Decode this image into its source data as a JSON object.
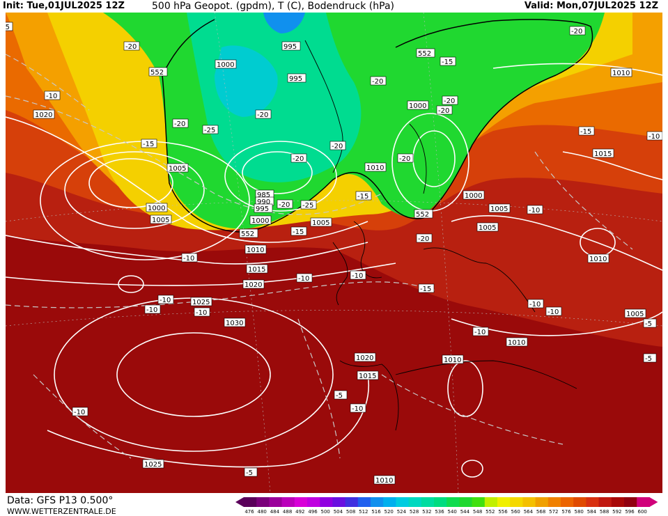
{
  "header": {
    "init": "Init: Tue,01JUL2025 12Z",
    "title": "500 hPa Geopot. (gpdm), T (C), Bodendruck (hPa)",
    "valid": "Valid: Mon,07JUL2025 12Z"
  },
  "footer": {
    "data_source": "Data: GFS P13 0.500°",
    "website": "WWW.WETTERZENTRALE.DE"
  },
  "color_scale": {
    "values": [
      "476",
      "480",
      "484",
      "488",
      "492",
      "496",
      "500",
      "504",
      "508",
      "512",
      "516",
      "520",
      "524",
      "528",
      "532",
      "536",
      "540",
      "544",
      "548",
      "552",
      "556",
      "560",
      "564",
      "568",
      "572",
      "576",
      "580",
      "584",
      "588",
      "592",
      "596",
      "600"
    ],
    "colors": [
      "#5a005a",
      "#7a007a",
      "#9a009a",
      "#bb00bb",
      "#d800d8",
      "#c000e0",
      "#9000e0",
      "#6a10e0",
      "#4030e0",
      "#2060ee",
      "#1090ee",
      "#00b0ee",
      "#00cce0",
      "#00d8c0",
      "#00dca0",
      "#00dc80",
      "#10dc50",
      "#20d830",
      "#40e010",
      "#c0f000",
      "#f0f000",
      "#f4d800",
      "#f4c000",
      "#f0a000",
      "#f08000",
      "#ec6400",
      "#e04a00",
      "#d83010",
      "#c01810",
      "#a80808",
      "#900010",
      "#d0007a"
    ]
  },
  "geopotential_labels": [
    "552",
    "552",
    "552",
    "552"
  ],
  "pressure_labels": [
    "995",
    "1000",
    "995",
    "1000",
    "1010",
    "1000",
    "985",
    "990",
    "995",
    "1000",
    "1005",
    "1000",
    "1005",
    "1005",
    "1005",
    "1005",
    "1010",
    "1010",
    "1010",
    "1015",
    "1020",
    "1020",
    "1025",
    "1030",
    "1015",
    "1010",
    "1010",
    "1015",
    "1010",
    "1010",
    "1005",
    "1020",
    "1025",
    "1010"
  ],
  "temperature_labels": [
    "-20",
    "-20",
    "-10",
    "-20",
    "-25",
    "-15",
    "-20",
    "-20",
    "-20",
    "-20",
    "-25",
    "-15",
    "-20",
    "-15",
    "-20",
    "-20",
    "-20",
    "-15",
    "-10",
    "-10",
    "-10",
    "-10",
    "-10",
    "-10",
    "-15",
    "-10",
    "-10",
    "-10",
    "-5",
    "-10",
    "-10",
    "-5",
    "-15",
    "-10",
    "-20",
    "-10",
    "-5",
    "-5",
    "-5",
    "-10"
  ]
}
